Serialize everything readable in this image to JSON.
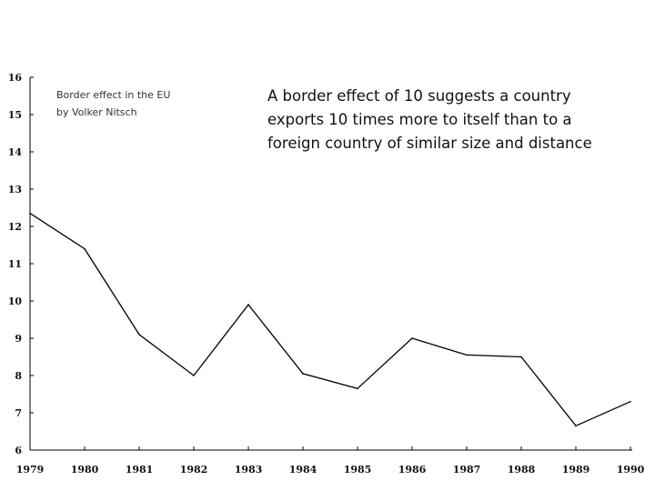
{
  "chart_data": {
    "type": "line",
    "title": "Border effect in the EU",
    "subtitle": "by Volker Nitsch",
    "annotation": [
      "A border effect of 10 suggests a country",
      "exports 10 times more to itself than to a",
      "foreign country of similar size and distance"
    ],
    "x": [
      "1979",
      "1980",
      "1981",
      "1982",
      "1983",
      "1984",
      "1985",
      "1986",
      "1987",
      "1988",
      "1989",
      "1990"
    ],
    "series": [
      {
        "values": [
          12.35,
          11.4,
          9.1,
          8.0,
          9.9,
          8.05,
          7.65,
          9.0,
          8.55,
          8.5,
          6.65,
          7.3
        ]
      }
    ],
    "yticks": [
      "6",
      "7",
      "8",
      "9",
      "10",
      "11",
      "12",
      "13",
      "14",
      "15",
      "16"
    ],
    "ylim": [
      6,
      16
    ],
    "xlabel": "",
    "ylabel": "",
    "grid": false,
    "line_color": "#000000"
  }
}
